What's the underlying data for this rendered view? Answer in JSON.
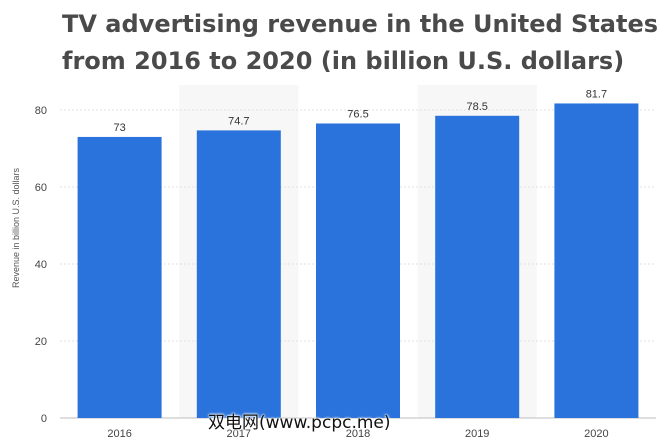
{
  "chart_data": {
    "type": "bar",
    "title": "TV advertising revenue in the United States from 2016 to 2020 (in billion U.S. dollars)",
    "xlabel": "",
    "ylabel": "Revenue in billion U.S. dollars",
    "categories": [
      "2016",
      "2017",
      "2018",
      "2019",
      "2020"
    ],
    "values": [
      73,
      74.7,
      76.5,
      78.5,
      81.7
    ],
    "value_labels": [
      "73",
      "74.7",
      "76.5",
      "78.5",
      "81.7"
    ],
    "ylim": [
      0,
      80
    ],
    "yticks": [
      0,
      20,
      40,
      60,
      80
    ],
    "grid": true,
    "bar_color": "#2a73dc",
    "alternating_band_color": "#f7f7f7",
    "grid_color": "#e0e0e0"
  },
  "watermark": "双电网(www.pcpc.me)"
}
